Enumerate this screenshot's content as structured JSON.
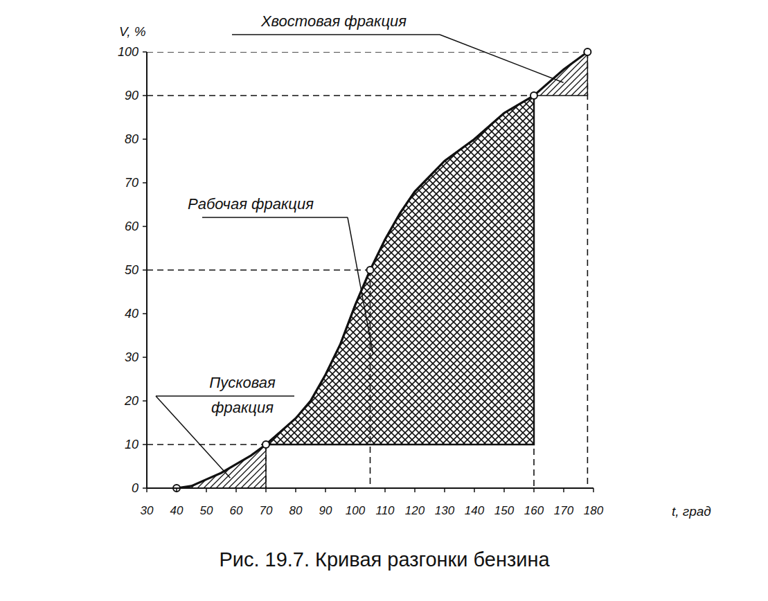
{
  "chart_data": {
    "type": "line",
    "title": "Рис. 19.7. Кривая разгонки бензина",
    "x_label": "t, град",
    "y_label": "V, %",
    "xlim": [
      30,
      180
    ],
    "ylim": [
      0,
      100
    ],
    "xticks": [
      30,
      40,
      50,
      60,
      70,
      80,
      90,
      100,
      110,
      120,
      130,
      140,
      150,
      160,
      170,
      180
    ],
    "yticks": [
      0,
      10,
      20,
      30,
      40,
      50,
      60,
      70,
      80,
      90,
      100
    ],
    "grid": false,
    "series": [
      {
        "type": "line",
        "color": "#111111",
        "line_style": "solid",
        "x": [
          40,
          45,
          50,
          55,
          60,
          65,
          70,
          75,
          80,
          85,
          90,
          95,
          100,
          105,
          110,
          115,
          120,
          130,
          140,
          150,
          160,
          170,
          178
        ],
        "values": [
          0,
          0.5,
          2,
          3.5,
          5.5,
          7.5,
          10,
          13,
          16,
          20,
          26,
          33,
          42,
          50,
          57,
          63,
          68,
          75,
          80,
          86,
          90,
          96,
          100
        ]
      },
      {
        "type": "scatter",
        "marker": "circle",
        "color": "#111111",
        "x": [
          40,
          70,
          105,
          160,
          178
        ],
        "values": [
          0,
          10,
          50,
          90,
          100
        ]
      }
    ],
    "fractions": [
      {
        "label_lines": [
          "Пусковая",
          "фракция"
        ],
        "x": [
          40,
          70
        ],
        "base": 0
      },
      {
        "label_lines": [
          "Рабочая фракция"
        ],
        "x": [
          70,
          160
        ],
        "base": 10
      },
      {
        "label_lines": [
          "Хвостовая фракция"
        ],
        "x": [
          160,
          178
        ],
        "base": 90
      }
    ]
  }
}
